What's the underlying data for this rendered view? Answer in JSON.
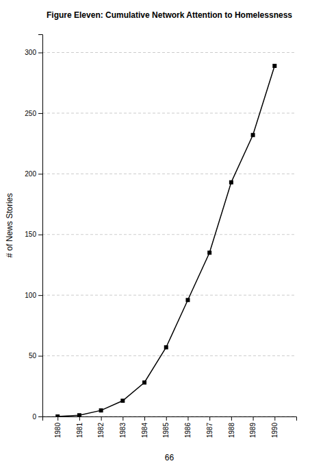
{
  "chart_data": {
    "type": "line",
    "title": "Figure Eleven: Cumulative Network Attention to Homelessness",
    "xlabel": "66",
    "ylabel": "# of News Stories",
    "x": [
      1980,
      1981,
      1982,
      1983,
      1984,
      1985,
      1986,
      1987,
      1988,
      1989,
      1990
    ],
    "values": [
      0,
      1,
      5,
      13,
      28,
      57,
      96,
      135,
      193,
      232,
      289
    ],
    "xlim": [
      1979.3,
      1991.0
    ],
    "xticks": [
      1980,
      1981,
      1982,
      1983,
      1984,
      1985,
      1986,
      1987,
      1988,
      1989,
      1990
    ],
    "ylim": [
      0,
      315
    ],
    "yticks": [
      0,
      50,
      100,
      150,
      200,
      250,
      300
    ],
    "grid": true,
    "color": "#000000",
    "marker": "square"
  }
}
